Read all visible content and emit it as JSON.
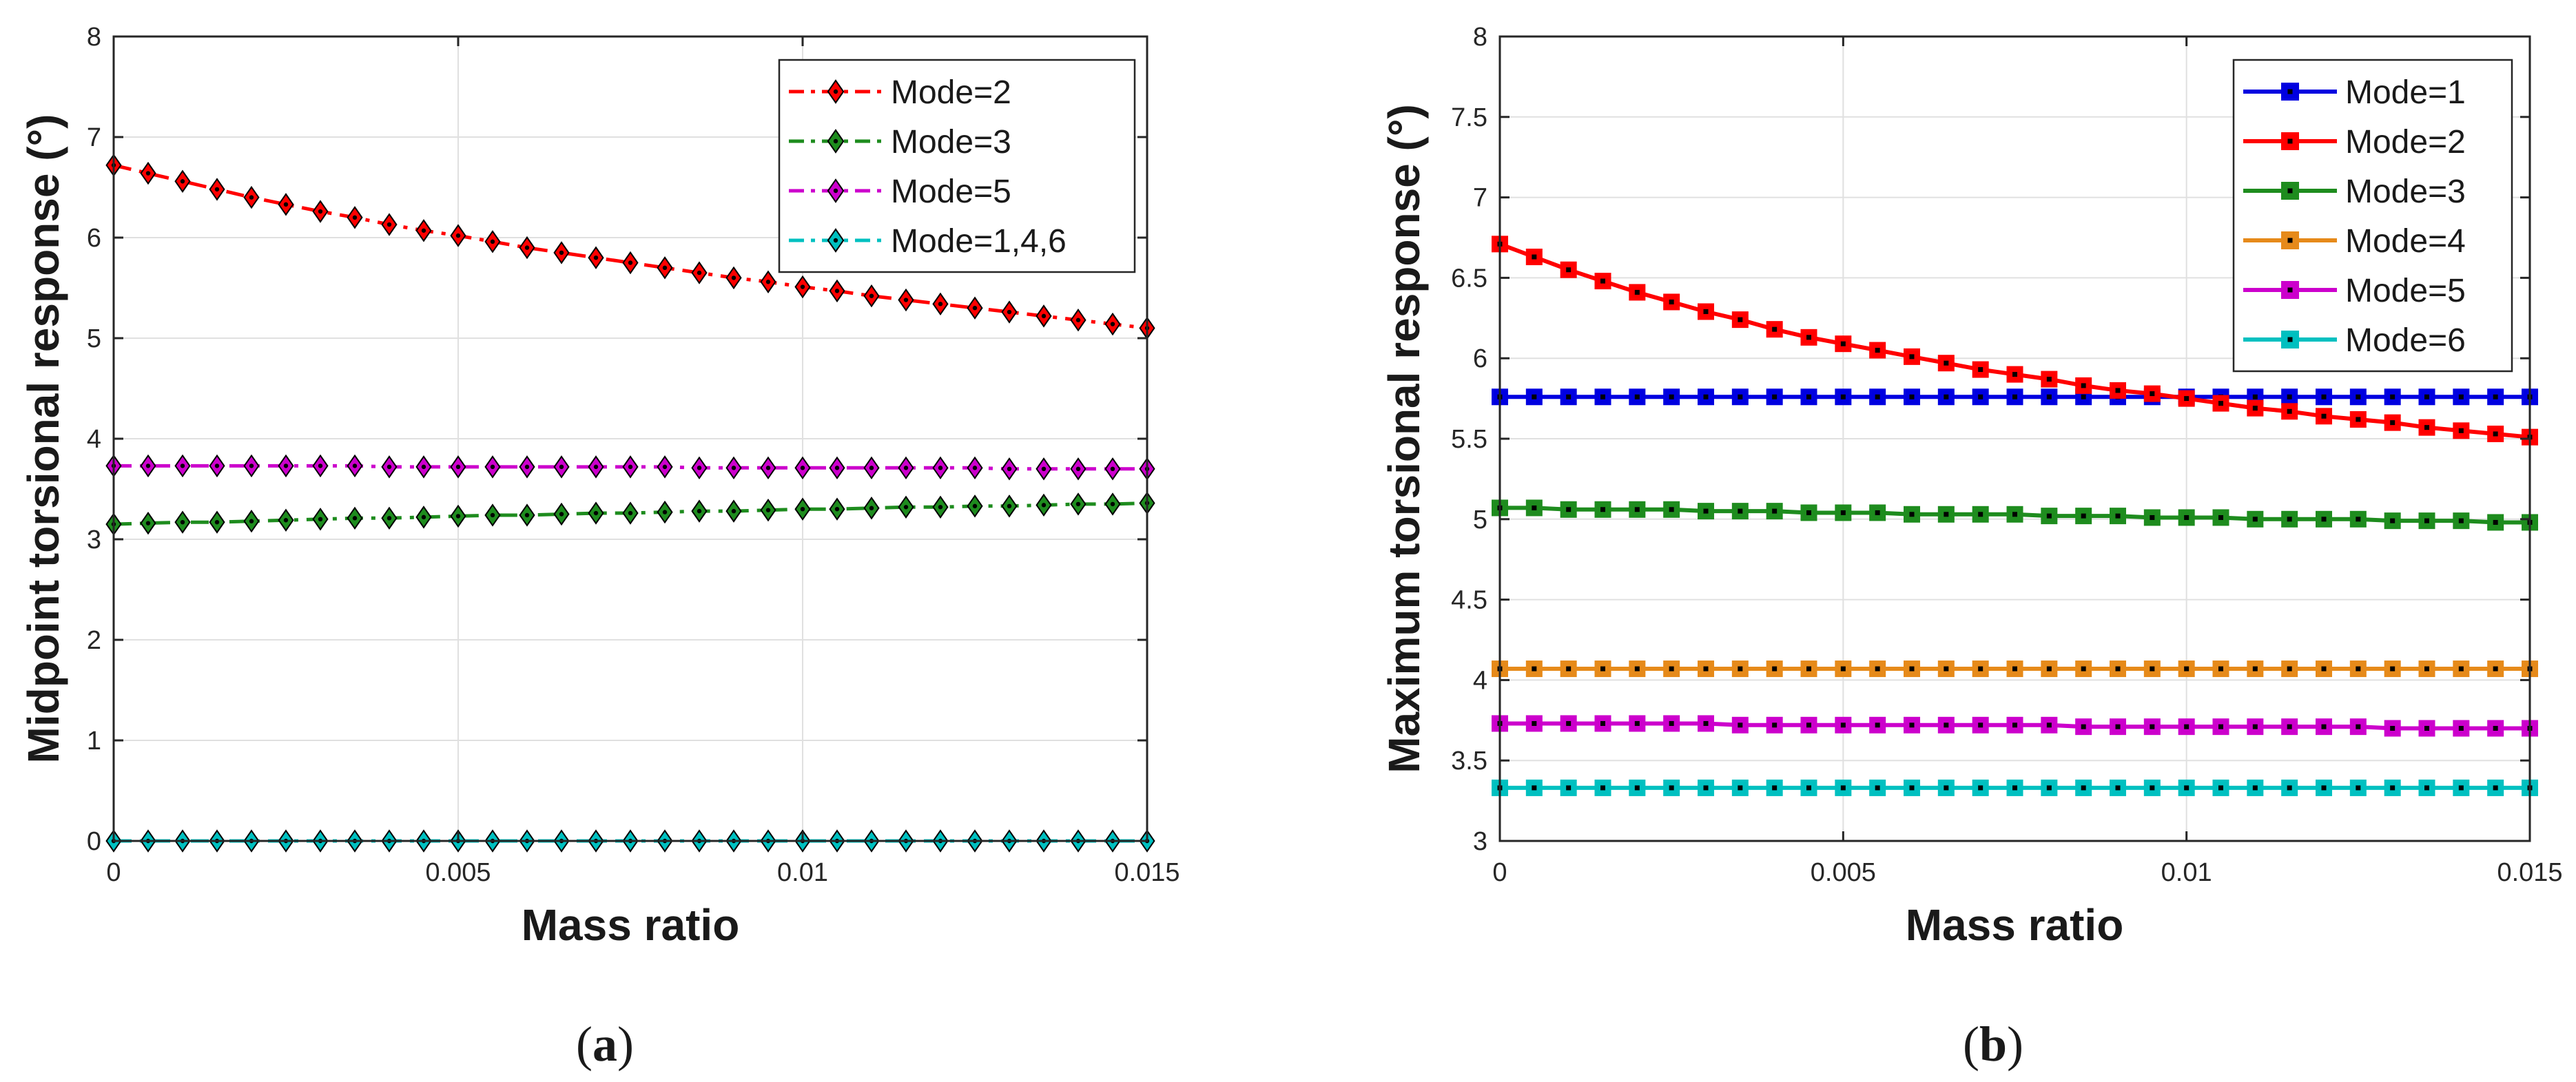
{
  "chart_data": [
    {
      "type": "line",
      "panel_label": "(a)",
      "panel_letter": "a",
      "title": "",
      "xlabel": "Mass ratio",
      "ylabel": "Midpoint torsional response (°)",
      "xlim": [
        0,
        0.015
      ],
      "ylim": [
        0,
        8
      ],
      "xticks": [
        0,
        0.005,
        0.01,
        0.015
      ],
      "xtick_labels": [
        "0",
        "0.005",
        "0.01",
        "0.015"
      ],
      "yticks": [
        0,
        1,
        2,
        3,
        4,
        5,
        6,
        7,
        8
      ],
      "ytick_labels": [
        "0",
        "1",
        "2",
        "3",
        "4",
        "5",
        "6",
        "7",
        "8"
      ],
      "grid": true,
      "legend_position": "top-right",
      "x": [
        0,
        0.0005,
        0.001,
        0.0015,
        0.002,
        0.0025,
        0.003,
        0.0035,
        0.004,
        0.0045,
        0.005,
        0.0055,
        0.006,
        0.0065,
        0.007,
        0.0075,
        0.008,
        0.0085,
        0.009,
        0.0095,
        0.01,
        0.0105,
        0.011,
        0.0115,
        0.012,
        0.0125,
        0.013,
        0.0135,
        0.014,
        0.0145,
        0.015
      ],
      "series": [
        {
          "name": "Mode=2",
          "color": "#ff0000",
          "marker": "diamond",
          "line": "dashdot",
          "values": [
            6.72,
            6.64,
            6.56,
            6.48,
            6.4,
            6.33,
            6.26,
            6.2,
            6.13,
            6.07,
            6.02,
            5.96,
            5.9,
            5.85,
            5.8,
            5.75,
            5.7,
            5.65,
            5.6,
            5.56,
            5.51,
            5.47,
            5.42,
            5.38,
            5.34,
            5.3,
            5.26,
            5.22,
            5.18,
            5.14,
            5.1
          ]
        },
        {
          "name": "Mode=3",
          "color": "#1e8c1e",
          "marker": "diamond",
          "line": "dashdot",
          "values": [
            3.15,
            3.16,
            3.17,
            3.17,
            3.18,
            3.19,
            3.2,
            3.21,
            3.21,
            3.22,
            3.23,
            3.24,
            3.24,
            3.25,
            3.26,
            3.26,
            3.27,
            3.28,
            3.28,
            3.29,
            3.3,
            3.3,
            3.31,
            3.32,
            3.32,
            3.33,
            3.33,
            3.34,
            3.35,
            3.35,
            3.36
          ]
        },
        {
          "name": "Mode=5",
          "color": "#cc00cc",
          "marker": "diamond",
          "line": "dashdot",
          "values": [
            3.73,
            3.73,
            3.73,
            3.73,
            3.73,
            3.73,
            3.73,
            3.73,
            3.72,
            3.72,
            3.72,
            3.72,
            3.72,
            3.72,
            3.72,
            3.72,
            3.72,
            3.71,
            3.71,
            3.71,
            3.71,
            3.71,
            3.71,
            3.71,
            3.71,
            3.71,
            3.7,
            3.7,
            3.7,
            3.7,
            3.7
          ]
        },
        {
          "name": "Mode=1,4,6",
          "color": "#00c0c0",
          "marker": "diamond",
          "line": "dashdot",
          "values": [
            0,
            0,
            0,
            0,
            0,
            0,
            0,
            0,
            0,
            0,
            0,
            0,
            0,
            0,
            0,
            0,
            0,
            0,
            0,
            0,
            0,
            0,
            0,
            0,
            0,
            0,
            0,
            0,
            0,
            0,
            0
          ]
        }
      ]
    },
    {
      "type": "line",
      "panel_label": "(b)",
      "panel_letter": "b",
      "title": "",
      "xlabel": "Mass ratio",
      "ylabel": "Maximum torsional response (°)",
      "xlim": [
        0,
        0.015
      ],
      "ylim": [
        3,
        8
      ],
      "xticks": [
        0,
        0.005,
        0.01,
        0.015
      ],
      "xtick_labels": [
        "0",
        "0.005",
        "0.01",
        "0.015"
      ],
      "yticks": [
        3,
        3.5,
        4,
        4.5,
        5,
        5.5,
        6,
        6.5,
        7,
        7.5,
        8
      ],
      "ytick_labels": [
        "3",
        "3.5",
        "4",
        "4.5",
        "5",
        "5.5",
        "6",
        "6.5",
        "7",
        "7.5",
        "8"
      ],
      "grid": true,
      "legend_position": "top-right",
      "x": [
        0,
        0.0005,
        0.001,
        0.0015,
        0.002,
        0.0025,
        0.003,
        0.0035,
        0.004,
        0.0045,
        0.005,
        0.0055,
        0.006,
        0.0065,
        0.007,
        0.0075,
        0.008,
        0.0085,
        0.009,
        0.0095,
        0.01,
        0.0105,
        0.011,
        0.0115,
        0.012,
        0.0125,
        0.013,
        0.0135,
        0.014,
        0.0145,
        0.015
      ],
      "series": [
        {
          "name": "Mode=1",
          "color": "#0000e0",
          "marker": "square",
          "line": "solid",
          "values": [
            5.76,
            5.76,
            5.76,
            5.76,
            5.76,
            5.76,
            5.76,
            5.76,
            5.76,
            5.76,
            5.76,
            5.76,
            5.76,
            5.76,
            5.76,
            5.76,
            5.76,
            5.76,
            5.76,
            5.76,
            5.76,
            5.76,
            5.76,
            5.76,
            5.76,
            5.76,
            5.76,
            5.76,
            5.76,
            5.76,
            5.76
          ]
        },
        {
          "name": "Mode=2",
          "color": "#ff0000",
          "marker": "square",
          "line": "solid",
          "values": [
            6.71,
            6.63,
            6.55,
            6.48,
            6.41,
            6.35,
            6.29,
            6.24,
            6.18,
            6.13,
            6.09,
            6.05,
            6.01,
            5.97,
            5.93,
            5.9,
            5.87,
            5.83,
            5.8,
            5.78,
            5.75,
            5.72,
            5.69,
            5.67,
            5.64,
            5.62,
            5.6,
            5.57,
            5.55,
            5.53,
            5.51
          ]
        },
        {
          "name": "Mode=3",
          "color": "#1e8c1e",
          "marker": "square",
          "line": "solid",
          "values": [
            5.07,
            5.07,
            5.06,
            5.06,
            5.06,
            5.06,
            5.05,
            5.05,
            5.05,
            5.04,
            5.04,
            5.04,
            5.03,
            5.03,
            5.03,
            5.03,
            5.02,
            5.02,
            5.02,
            5.01,
            5.01,
            5.01,
            5.0,
            5.0,
            5.0,
            5.0,
            4.99,
            4.99,
            4.99,
            4.98,
            4.98
          ]
        },
        {
          "name": "Mode=4",
          "color": "#e68a1a",
          "marker": "square",
          "line": "solid",
          "values": [
            4.07,
            4.07,
            4.07,
            4.07,
            4.07,
            4.07,
            4.07,
            4.07,
            4.07,
            4.07,
            4.07,
            4.07,
            4.07,
            4.07,
            4.07,
            4.07,
            4.07,
            4.07,
            4.07,
            4.07,
            4.07,
            4.07,
            4.07,
            4.07,
            4.07,
            4.07,
            4.07,
            4.07,
            4.07,
            4.07,
            4.07
          ]
        },
        {
          "name": "Mode=5",
          "color": "#cc00cc",
          "marker": "square",
          "line": "solid",
          "values": [
            3.73,
            3.73,
            3.73,
            3.73,
            3.73,
            3.73,
            3.73,
            3.72,
            3.72,
            3.72,
            3.72,
            3.72,
            3.72,
            3.72,
            3.72,
            3.72,
            3.72,
            3.71,
            3.71,
            3.71,
            3.71,
            3.71,
            3.71,
            3.71,
            3.71,
            3.71,
            3.7,
            3.7,
            3.7,
            3.7,
            3.7
          ]
        },
        {
          "name": "Mode=6",
          "color": "#00c0c0",
          "marker": "square",
          "line": "solid",
          "values": [
            3.33,
            3.33,
            3.33,
            3.33,
            3.33,
            3.33,
            3.33,
            3.33,
            3.33,
            3.33,
            3.33,
            3.33,
            3.33,
            3.33,
            3.33,
            3.33,
            3.33,
            3.33,
            3.33,
            3.33,
            3.33,
            3.33,
            3.33,
            3.33,
            3.33,
            3.33,
            3.33,
            3.33,
            3.33,
            3.33,
            3.33
          ]
        }
      ]
    }
  ]
}
